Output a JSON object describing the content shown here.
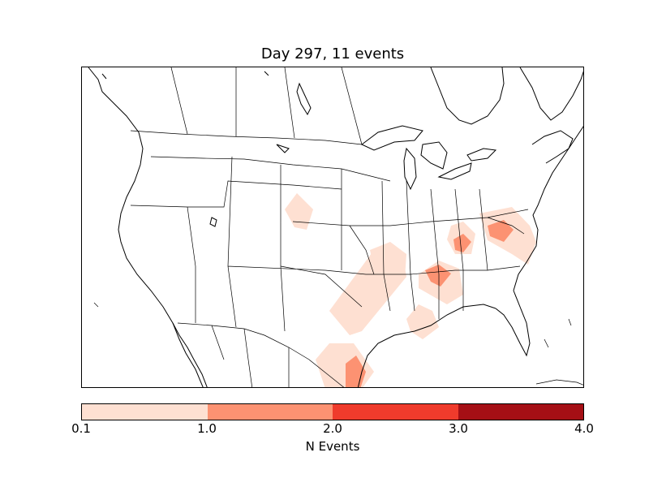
{
  "title": "Day 297, 11 events",
  "colorbar": {
    "label": "N Events",
    "ticks": [
      "0.1",
      "1.0",
      "2.0",
      "3.0",
      "4.0"
    ],
    "colors": [
      "#fee0d2",
      "#fc9272",
      "#ef3b2c",
      "#a50f15"
    ]
  },
  "map": {
    "region": "North America (Lambert conformal)",
    "line_color": "#000000",
    "fill_colors": [
      "#fee0d2",
      "#fc9272",
      "#ef3b2c"
    ]
  }
}
